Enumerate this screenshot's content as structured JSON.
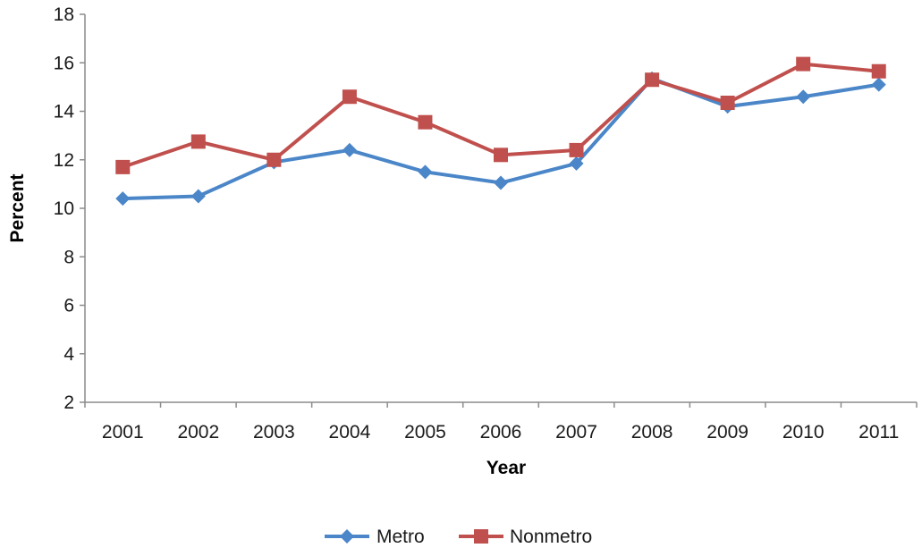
{
  "chart_data": {
    "type": "line",
    "x": [
      "2001",
      "2002",
      "2003",
      "2004",
      "2005",
      "2006",
      "2007",
      "2008",
      "2009",
      "2010",
      "2011"
    ],
    "xlabel": "Year",
    "ylabel": "Percent",
    "ylim": [
      2,
      18
    ],
    "yticks": [
      2,
      4,
      6,
      8,
      10,
      12,
      14,
      16,
      18
    ],
    "grid": false,
    "legend_position": "bottom",
    "series": [
      {
        "name": "Metro",
        "color": "#4a86c8",
        "marker": "diamond",
        "values": [
          10.4,
          10.5,
          11.9,
          12.4,
          11.5,
          11.05,
          11.85,
          15.35,
          14.2,
          14.6,
          15.1
        ]
      },
      {
        "name": "Nonmetro",
        "color": "#c0504d",
        "marker": "square",
        "values": [
          11.7,
          12.75,
          12.0,
          14.6,
          13.55,
          12.2,
          12.4,
          15.3,
          14.35,
          15.95,
          15.65
        ]
      }
    ]
  }
}
